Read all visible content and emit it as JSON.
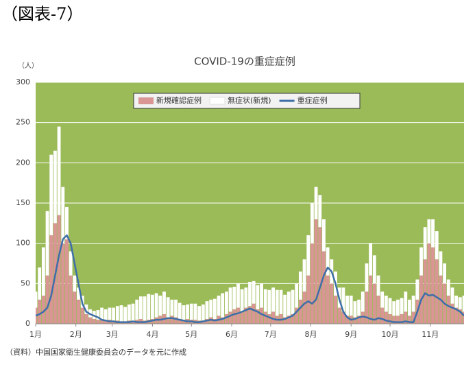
{
  "figure_label": "（図表-7）",
  "source": "（資料）中国国家衛生健康委員会のデータを元に作成",
  "chart_data": {
    "type": "bar_line",
    "title": "COVID-19の重症症例",
    "y_unit": "（人）",
    "x": [
      0,
      3,
      6,
      9,
      12,
      15,
      18,
      21,
      24,
      27,
      30,
      33,
      36,
      39,
      42,
      45,
      48,
      51,
      54,
      57,
      60,
      63,
      66,
      69,
      72,
      75,
      78,
      81,
      84,
      87,
      90,
      93,
      96,
      99,
      102,
      105,
      108,
      111,
      114,
      117,
      120,
      123,
      126,
      129,
      132,
      135,
      138,
      141,
      144,
      147,
      150,
      153,
      156,
      159,
      162,
      165,
      168,
      171,
      174,
      177,
      180,
      183,
      186,
      189,
      192,
      195,
      198,
      201,
      204,
      207,
      210,
      213,
      216,
      219,
      222,
      225,
      228,
      231,
      234,
      237,
      240,
      243,
      246,
      249,
      252,
      255,
      258,
      261,
      264,
      267,
      270,
      273,
      276,
      279,
      282,
      285,
      288,
      291,
      294,
      297,
      300,
      303,
      306,
      309,
      312,
      315,
      318,
      321,
      324,
      327,
      330
    ],
    "series": [
      {
        "name": "新規確認症例",
        "kind": "bar",
        "color": "#d99694",
        "values": [
          20,
          30,
          35,
          60,
          110,
          125,
          135,
          100,
          105,
          60,
          40,
          30,
          20,
          12,
          8,
          6,
          5,
          5,
          4,
          5,
          4,
          4,
          3,
          3,
          4,
          3,
          5,
          6,
          4,
          5,
          6,
          8,
          10,
          12,
          8,
          10,
          8,
          6,
          5,
          6,
          5,
          5,
          4,
          4,
          6,
          8,
          6,
          10,
          8,
          12,
          15,
          18,
          20,
          15,
          20,
          22,
          25,
          18,
          20,
          15,
          12,
          15,
          10,
          12,
          8,
          10,
          12,
          20,
          30,
          40,
          60,
          100,
          130,
          120,
          90,
          60,
          50,
          35,
          20,
          15,
          10,
          10,
          8,
          10,
          15,
          40,
          60,
          50,
          35,
          20,
          15,
          12,
          10,
          10,
          12,
          15,
          10,
          15,
          30,
          60,
          80,
          100,
          95,
          80,
          60,
          50,
          35,
          25,
          20,
          18,
          15
        ]
      },
      {
        "name": "無症状(新規)",
        "kind": "bar",
        "color": "#ffffff",
        "values": [
          20,
          40,
          60,
          80,
          100,
          90,
          110,
          70,
          40,
          30,
          20,
          15,
          15,
          12,
          10,
          10,
          12,
          15,
          14,
          15,
          16,
          18,
          20,
          18,
          20,
          22,
          25,
          28,
          30,
          32,
          30,
          30,
          25,
          28,
          25,
          20,
          22,
          20,
          18,
          18,
          20,
          20,
          18,
          20,
          22,
          22,
          25,
          25,
          30,
          28,
          30,
          28,
          30,
          28,
          25,
          30,
          28,
          30,
          30,
          28,
          30,
          30,
          32,
          30,
          28,
          30,
          30,
          30,
          35,
          40,
          50,
          50,
          40,
          40,
          40,
          35,
          30,
          30,
          25,
          30,
          25,
          25,
          20,
          20,
          25,
          35,
          40,
          35,
          25,
          20,
          20,
          20,
          18,
          20,
          20,
          25,
          20,
          20,
          25,
          35,
          40,
          30,
          35,
          35,
          30,
          25,
          20,
          20,
          15,
          15,
          20
        ]
      },
      {
        "name": "重症症例",
        "kind": "line",
        "color": "#3e6ea8",
        "values": [
          10,
          12,
          15,
          20,
          35,
          60,
          85,
          105,
          110,
          100,
          75,
          50,
          25,
          15,
          12,
          10,
          8,
          5,
          4,
          3,
          3,
          2,
          2,
          2,
          2,
          3,
          2,
          2,
          2,
          3,
          4,
          5,
          5,
          6,
          7,
          7,
          6,
          5,
          4,
          3,
          3,
          2,
          2,
          3,
          4,
          5,
          4,
          5,
          6,
          8,
          10,
          12,
          13,
          15,
          17,
          19,
          17,
          15,
          12,
          10,
          8,
          6,
          5,
          5,
          6,
          8,
          10,
          15,
          20,
          25,
          28,
          25,
          30,
          45,
          60,
          70,
          65,
          50,
          30,
          15,
          8,
          5,
          6,
          8,
          9,
          8,
          6,
          5,
          7,
          6,
          4,
          3,
          2,
          2,
          2,
          3,
          2,
          2,
          15,
          30,
          38,
          35,
          36,
          33,
          30,
          25,
          22,
          20,
          18,
          15,
          10
        ]
      }
    ],
    "xlim": [
      0,
      330
    ],
    "xticks": [
      {
        "value": 0,
        "label": "1月"
      },
      {
        "value": 31,
        "label": "2月"
      },
      {
        "value": 59,
        "label": "3月"
      },
      {
        "value": 90,
        "label": "4月"
      },
      {
        "value": 120,
        "label": "5月"
      },
      {
        "value": 151,
        "label": "6月"
      },
      {
        "value": 181,
        "label": "7月"
      },
      {
        "value": 212,
        "label": "8月"
      },
      {
        "value": 243,
        "label": "9月"
      },
      {
        "value": 273,
        "label": "10月"
      },
      {
        "value": 304,
        "label": "11月"
      }
    ],
    "ylim": [
      0,
      300
    ],
    "yticks": [
      0,
      50,
      100,
      150,
      200,
      250,
      300
    ],
    "grid": true,
    "plot_color": "#9bbb59",
    "legend": "top"
  }
}
